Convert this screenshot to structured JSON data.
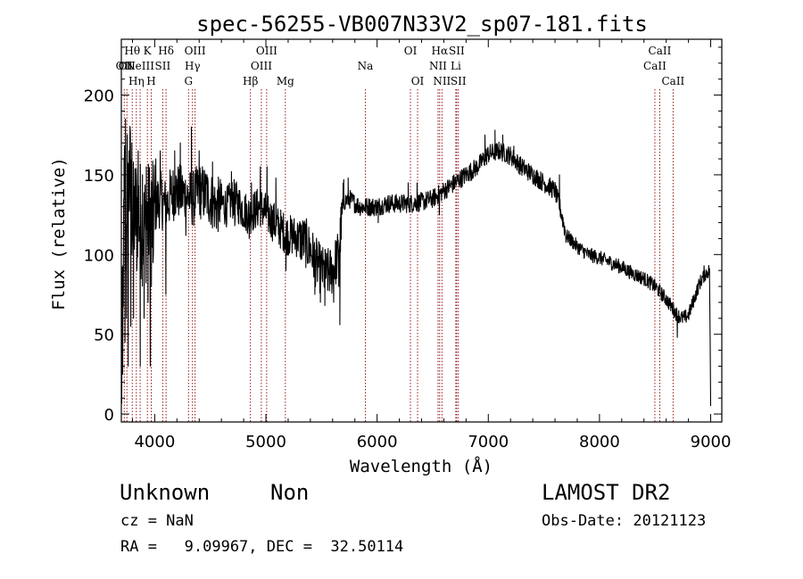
{
  "chart_data": {
    "type": "line",
    "title": "spec-56255-VB007N33V2_sp07-181.fits",
    "xlabel": "Wavelength (Å)",
    "ylabel": "Flux (relative)",
    "xlim": [
      3700,
      9100
    ],
    "ylim": [
      -5,
      235
    ],
    "xticks": [
      4000,
      5000,
      6000,
      7000,
      8000,
      9000
    ],
    "yticks": [
      0,
      50,
      100,
      150,
      200
    ],
    "grid": false,
    "legend": "none",
    "line_color": "#000000",
    "marker_line_color": "#8b0000",
    "spectrum": {
      "name": "",
      "anchors": [
        [
          3700,
          5
        ],
        [
          3710,
          60
        ],
        [
          3720,
          100
        ],
        [
          3730,
          150
        ],
        [
          3740,
          110
        ],
        [
          3760,
          135
        ],
        [
          3780,
          150
        ],
        [
          3800,
          120
        ],
        [
          3820,
          125
        ],
        [
          3850,
          130
        ],
        [
          3880,
          120
        ],
        [
          3900,
          115
        ],
        [
          3930,
          120
        ],
        [
          3960,
          125
        ],
        [
          3980,
          120
        ],
        [
          4000,
          130
        ],
        [
          4050,
          135
        ],
        [
          4100,
          130
        ],
        [
          4150,
          138
        ],
        [
          4200,
          140
        ],
        [
          4250,
          138
        ],
        [
          4300,
          136
        ],
        [
          4350,
          135
        ],
        [
          4400,
          140
        ],
        [
          4450,
          138
        ],
        [
          4500,
          135
        ],
        [
          4550,
          130
        ],
        [
          4600,
          132
        ],
        [
          4650,
          130
        ],
        [
          4700,
          135
        ],
        [
          4750,
          132
        ],
        [
          4800,
          128
        ],
        [
          4850,
          125
        ],
        [
          4900,
          128
        ],
        [
          4950,
          130
        ],
        [
          5000,
          126
        ],
        [
          5050,
          122
        ],
        [
          5100,
          118
        ],
        [
          5150,
          115
        ],
        [
          5200,
          112
        ],
        [
          5250,
          112
        ],
        [
          5300,
          110
        ],
        [
          5350,
          108
        ],
        [
          5400,
          103
        ],
        [
          5450,
          95
        ],
        [
          5500,
          90
        ],
        [
          5550,
          88
        ],
        [
          5600,
          90
        ],
        [
          5650,
          100
        ],
        [
          5680,
          120
        ],
        [
          5700,
          133
        ],
        [
          5750,
          135
        ],
        [
          5800,
          132
        ],
        [
          5850,
          130
        ],
        [
          5900,
          130
        ],
        [
          6000,
          130
        ],
        [
          6100,
          132
        ],
        [
          6200,
          132
        ],
        [
          6300,
          132
        ],
        [
          6400,
          133
        ],
        [
          6500,
          135
        ],
        [
          6600,
          140
        ],
        [
          6700,
          145
        ],
        [
          6800,
          150
        ],
        [
          6900,
          155
        ],
        [
          7000,
          163
        ],
        [
          7100,
          165
        ],
        [
          7200,
          162
        ],
        [
          7300,
          155
        ],
        [
          7400,
          150
        ],
        [
          7500,
          145
        ],
        [
          7600,
          140
        ],
        [
          7650,
          128
        ],
        [
          7700,
          112
        ],
        [
          7800,
          105
        ],
        [
          7900,
          100
        ],
        [
          8000,
          98
        ],
        [
          8100,
          95
        ],
        [
          8200,
          92
        ],
        [
          8300,
          88
        ],
        [
          8400,
          85
        ],
        [
          8500,
          80
        ],
        [
          8600,
          72
        ],
        [
          8700,
          62
        ],
        [
          8750,
          60
        ],
        [
          8800,
          62
        ],
        [
          8850,
          72
        ],
        [
          8900,
          82
        ],
        [
          8950,
          88
        ],
        [
          8990,
          90
        ],
        [
          9000,
          5
        ]
      ],
      "spikes": [
        [
          3712,
          25
        ],
        [
          3724,
          160
        ],
        [
          3733,
          45
        ],
        [
          3738,
          185
        ],
        [
          3746,
          60
        ],
        [
          3752,
          175
        ],
        [
          3762,
          30
        ],
        [
          3770,
          165
        ],
        [
          3785,
          55
        ],
        [
          3795,
          170
        ],
        [
          3810,
          60
        ],
        [
          3825,
          150
        ],
        [
          3840,
          90
        ],
        [
          3852,
          165
        ],
        [
          3870,
          30
        ],
        [
          3890,
          150
        ],
        [
          3905,
          60
        ],
        [
          3925,
          155
        ],
        [
          3940,
          70
        ],
        [
          3960,
          30
        ],
        [
          3970,
          80
        ],
        [
          3985,
          95
        ],
        [
          4010,
          160
        ],
        [
          4050,
          165
        ],
        [
          4100,
          75
        ],
        [
          4180,
          165
        ],
        [
          4230,
          170
        ],
        [
          4280,
          112
        ],
        [
          4330,
          180
        ],
        [
          4400,
          165
        ],
        [
          4470,
          150
        ],
        [
          4520,
          158
        ],
        [
          4690,
          152
        ],
        [
          4720,
          118
        ],
        [
          4850,
          110
        ],
        [
          4870,
          145
        ],
        [
          4950,
          155
        ],
        [
          5010,
          155
        ],
        [
          5090,
          148
        ],
        [
          5180,
          90
        ],
        [
          5440,
          75
        ],
        [
          5490,
          70
        ],
        [
          5530,
          68
        ],
        [
          5610,
          70
        ],
        [
          5655,
          80
        ],
        [
          5665,
          56
        ],
        [
          5700,
          147
        ],
        [
          5740,
          148
        ],
        [
          6010,
          120
        ],
        [
          6280,
          145
        ],
        [
          6360,
          145
        ],
        [
          6560,
          125
        ],
        [
          6970,
          175
        ],
        [
          7060,
          178
        ],
        [
          7130,
          175
        ],
        [
          7230,
          168
        ],
        [
          7640,
          150
        ],
        [
          8700,
          48
        ],
        [
          8940,
          93
        ]
      ]
    },
    "line_markers": [
      {
        "x": 3726,
        "tier": 1,
        "label": "OII"
      },
      {
        "x": 3750,
        "tier": 1,
        "label": "OII"
      },
      {
        "x": 3798,
        "tier": 0,
        "label": "Hθ"
      },
      {
        "x": 3835,
        "tier": 2,
        "label": "Hη"
      },
      {
        "x": 3869,
        "tier": 1,
        "label": "NeIII"
      },
      {
        "x": 3934,
        "tier": 0,
        "label": "K"
      },
      {
        "x": 3969,
        "tier": 2,
        "label": "H"
      },
      {
        "x": 4072,
        "tier": 1,
        "label": "SII"
      },
      {
        "x": 4102,
        "tier": 0,
        "label": "Hδ"
      },
      {
        "x": 4304,
        "tier": 2,
        "label": "G"
      },
      {
        "x": 4340,
        "tier": 1,
        "label": "Hγ"
      },
      {
        "x": 4363,
        "tier": 0,
        "label": "OIII"
      },
      {
        "x": 4861,
        "tier": 2,
        "label": "Hβ"
      },
      {
        "x": 4959,
        "tier": 1,
        "label": "OIII"
      },
      {
        "x": 5007,
        "tier": 0,
        "label": "OIII"
      },
      {
        "x": 5175,
        "tier": 2,
        "label": "Mg"
      },
      {
        "x": 5894,
        "tier": 1,
        "label": "Na"
      },
      {
        "x": 6300,
        "tier": 0,
        "label": "OI"
      },
      {
        "x": 6364,
        "tier": 2,
        "label": "OI"
      },
      {
        "x": 6548,
        "tier": 1,
        "label": "NII"
      },
      {
        "x": 6563,
        "tier": 0,
        "label": "Hα"
      },
      {
        "x": 6583,
        "tier": 2,
        "label": "NII"
      },
      {
        "x": 6708,
        "tier": 1,
        "label": "Li"
      },
      {
        "x": 6716,
        "tier": 0,
        "label": "SII"
      },
      {
        "x": 6731,
        "tier": 2,
        "label": "SII"
      },
      {
        "x": 8498,
        "tier": 1,
        "label": "CaII"
      },
      {
        "x": 8542,
        "tier": 0,
        "label": "CaII"
      },
      {
        "x": 8662,
        "tier": 2,
        "label": "CaII"
      }
    ]
  },
  "info": {
    "class_label": "Unknown",
    "subclass_label": "Non",
    "survey": "LAMOST DR2",
    "cz_label": "cz = NaN",
    "obs_date": "Obs-Date: 20121123",
    "radec": "RA =   9.09967, DEC =  32.50114"
  }
}
